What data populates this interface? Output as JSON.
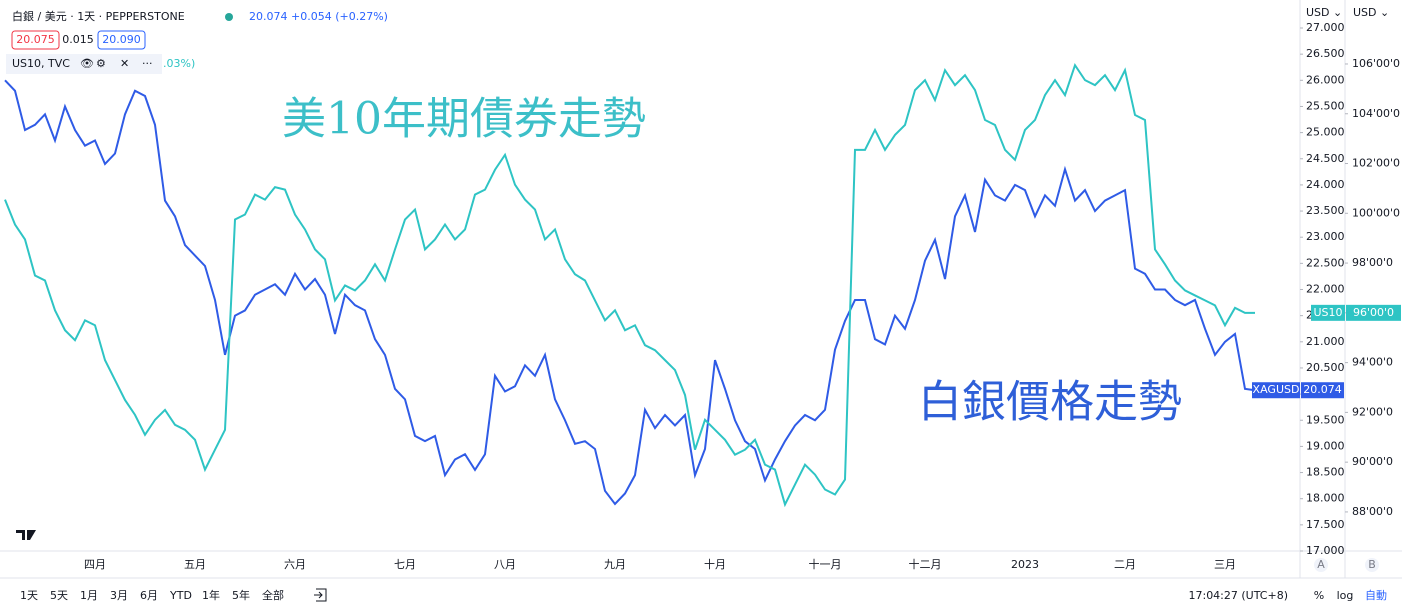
{
  "chart_data": {
    "type": "line",
    "categories": [
      null,
      null,
      null,
      null,
      null,
      null,
      null,
      null,
      null,
      "四月",
      null,
      null,
      null,
      null,
      null,
      null,
      null,
      null,
      null,
      "五月",
      null,
      null,
      null,
      null,
      null,
      null,
      null,
      null,
      null,
      "六月",
      null,
      null,
      null,
      null,
      null,
      null,
      null,
      null,
      null,
      null,
      "七月",
      null,
      null,
      null,
      null,
      null,
      null,
      null,
      null,
      null,
      "八月",
      null,
      null,
      null,
      null,
      null,
      null,
      null,
      null,
      null,
      null,
      "九月",
      null,
      null,
      null,
      null,
      null,
      null,
      null,
      null,
      null,
      "十月",
      null,
      null,
      null,
      null,
      null,
      null,
      null,
      null,
      null,
      null,
      "十一月",
      null,
      null,
      null,
      null,
      null,
      null,
      null,
      null,
      null,
      "十二月",
      null,
      null,
      null,
      null,
      null,
      null,
      null,
      null,
      null,
      "2023",
      null,
      null,
      null,
      null,
      null,
      null,
      null,
      null,
      null,
      "二月",
      null,
      null,
      null,
      null,
      null,
      null,
      null,
      null,
      null,
      "三月",
      null,
      null,
      null
    ],
    "series": [
      {
        "name": "XAGUSD",
        "color": "#2f5be6",
        "axis": "y",
        "values": [
          26.0,
          25.8,
          25.05,
          25.15,
          25.35,
          24.85,
          25.5,
          25.05,
          24.75,
          24.85,
          24.4,
          24.6,
          25.35,
          25.8,
          25.7,
          25.15,
          23.7,
          23.4,
          22.85,
          22.65,
          22.45,
          21.8,
          20.75,
          21.5,
          21.6,
          21.9,
          22.0,
          22.1,
          21.9,
          22.3,
          22.0,
          22.2,
          21.9,
          21.15,
          21.9,
          21.7,
          21.6,
          21.05,
          20.75,
          20.1,
          19.9,
          19.2,
          19.1,
          19.2,
          18.45,
          18.75,
          18.85,
          18.55,
          18.85,
          20.35,
          20.05,
          20.15,
          20.55,
          20.35,
          20.75,
          19.9,
          19.5,
          19.05,
          19.1,
          18.95,
          18.15,
          17.9,
          18.1,
          18.45,
          19.7,
          19.35,
          19.6,
          19.4,
          19.6,
          18.45,
          18.95,
          20.65,
          20.1,
          19.5,
          19.1,
          18.95,
          18.35,
          18.75,
          19.1,
          19.4,
          19.6,
          19.5,
          19.7,
          20.85,
          21.4,
          21.8,
          21.8,
          21.05,
          20.95,
          21.5,
          21.25,
          21.8,
          22.55,
          22.95,
          22.2,
          23.4,
          23.8,
          23.1,
          24.1,
          23.8,
          23.7,
          24.0,
          23.9,
          23.4,
          23.8,
          23.6,
          24.3,
          23.7,
          23.9,
          23.5,
          23.7,
          23.8,
          23.9,
          22.4,
          22.3,
          22.0,
          22.0,
          21.8,
          21.7,
          21.8,
          21.25,
          20.75,
          21.0,
          21.15,
          20.1,
          20.074
        ]
      },
      {
        "name": "US10",
        "color": "#2ec4c4",
        "axis": "y2",
        "last_label": "96'00'0",
        "values": [
          100.55,
          99.55,
          98.95,
          97.5,
          97.3,
          96.1,
          95.3,
          94.9,
          95.7,
          95.5,
          94.1,
          93.3,
          92.5,
          91.9,
          91.1,
          91.7,
          92.1,
          91.5,
          91.3,
          90.9,
          89.7,
          90.5,
          91.3,
          99.75,
          99.95,
          100.75,
          100.55,
          101.05,
          100.95,
          99.95,
          99.35,
          98.55,
          98.15,
          96.5,
          97.1,
          96.9,
          97.3,
          97.95,
          97.3,
          98.55,
          99.75,
          100.15,
          98.55,
          98.95,
          99.55,
          98.95,
          99.35,
          100.75,
          100.95,
          101.75,
          102.35,
          101.15,
          100.55,
          100.15,
          98.95,
          99.35,
          98.15,
          97.55,
          97.3,
          96.5,
          95.7,
          96.1,
          95.3,
          95.5,
          94.7,
          94.5,
          94.1,
          93.7,
          92.7,
          90.5,
          91.7,
          91.3,
          90.9,
          90.3,
          90.5,
          90.9,
          89.9,
          89.7,
          88.3,
          89.1,
          89.9,
          89.5,
          88.9,
          88.7,
          89.3,
          102.55,
          102.55,
          103.35,
          102.55,
          103.15,
          103.55,
          104.95,
          105.35,
          104.55,
          105.75,
          105.15,
          105.55,
          104.95,
          103.75,
          103.55,
          102.55,
          102.15,
          103.35,
          103.75,
          104.75,
          105.35,
          104.75,
          105.95,
          105.35,
          105.15,
          105.55,
          104.95,
          105.75,
          103.95,
          103.75,
          98.55,
          97.95,
          97.3,
          96.9,
          96.7,
          96.5,
          96.3,
          95.5,
          96.2,
          96.0,
          96.0
        ]
      }
    ],
    "ylim": [
      17.0,
      27.44
    ],
    "yticks": [
      {
        "value": 17,
        "label": "17.000"
      },
      {
        "value": 17.5,
        "label": "17.500"
      },
      {
        "value": 18,
        "label": "18.000"
      },
      {
        "value": 18.5,
        "label": "18.500"
      },
      {
        "value": 19,
        "label": "19.000"
      },
      {
        "value": 19.5,
        "label": "19.500"
      },
      {
        "value": 20,
        "label": "20.000"
      },
      {
        "value": 20.5,
        "label": "20.500"
      },
      {
        "value": 21,
        "label": "21.000"
      },
      {
        "value": 21.5,
        "label": "21.500"
      },
      {
        "value": 22,
        "label": "22.000"
      },
      {
        "value": 22.5,
        "label": "22.500"
      },
      {
        "value": 23,
        "label": "23.000"
      },
      {
        "value": 23.5,
        "label": "23.500"
      },
      {
        "value": 24,
        "label": "24.000"
      },
      {
        "value": 24.5,
        "label": "24.500"
      },
      {
        "value": 25,
        "label": "25.000"
      },
      {
        "value": 25.5,
        "label": "25.500"
      },
      {
        "value": 26,
        "label": "26.000"
      },
      {
        "value": 26.5,
        "label": "26.500"
      },
      {
        "value": 27,
        "label": "27.000"
      }
    ],
    "y2lim": [
      86.43,
      108.37
    ],
    "y2ticks": [
      {
        "value": 88,
        "label": "88'00'0"
      },
      {
        "value": 90,
        "label": "90'00'0"
      },
      {
        "value": 92,
        "label": "92'00'0"
      },
      {
        "value": 94,
        "label": "94'00'0"
      },
      {
        "value": 96,
        "label": "96'00'0"
      },
      {
        "value": 98,
        "label": "98'00'0"
      },
      {
        "value": 100,
        "label": "100'00'0"
      },
      {
        "value": 102,
        "label": "102'00'0"
      },
      {
        "value": 104,
        "label": "104'00'0"
      },
      {
        "value": 106,
        "label": "106'00'0"
      }
    ],
    "grid": false,
    "log_scale": false,
    "annotations": [
      {
        "text": "美10年期債券走勢",
        "color": "#3cbfc8"
      },
      {
        "text": "白銀價格走勢",
        "color": "#2e5fd8"
      }
    ],
    "axis_units": [
      "USD ⌄",
      "USD ⌄"
    ],
    "axis_badges": [
      "A",
      "B"
    ]
  },
  "ui": {
    "header": {
      "symbol": "白銀 / 美元 · 1天 · PEPPERSTONE",
      "quote": "20.074 +0.054 (+0.27%)",
      "bid": "20.075",
      "spread": "0.015",
      "ask": "20.090"
    },
    "overlay": {
      "symbol": "US10, TVC",
      "quote": ".03%)"
    },
    "toolbar": {
      "ranges": [
        "1天",
        "5天",
        "1月",
        "3月",
        "6月",
        "YTD",
        "1年",
        "5年",
        "全部"
      ],
      "clock": "17:04:27 (UTC+8)",
      "percent": "%",
      "log": "log",
      "auto": "自動"
    }
  }
}
